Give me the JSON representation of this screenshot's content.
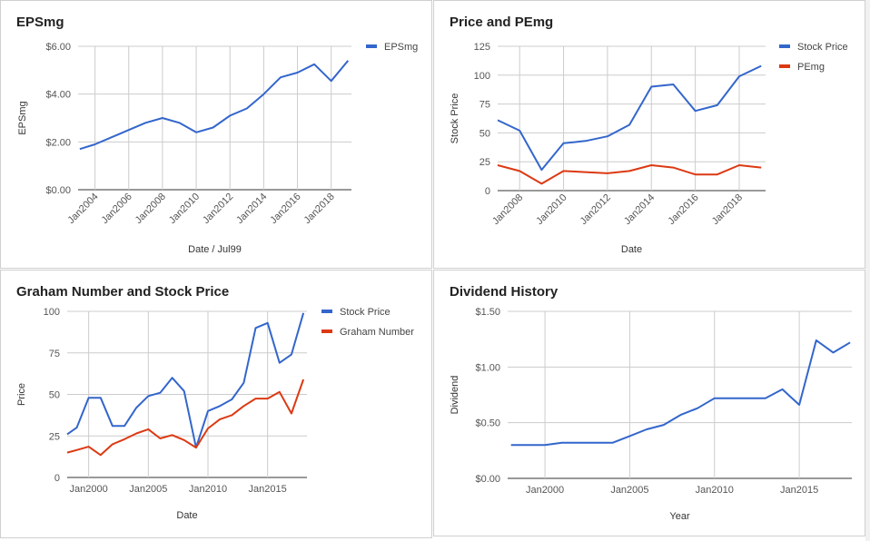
{
  "colors": {
    "blue": "#3366cc",
    "red": "#dc3912",
    "grid": "#cccccc",
    "axis": "#333333"
  },
  "chart_data": [
    {
      "id": "eps",
      "type": "line",
      "title": "EPSmg",
      "xlabel": "Date / Jul99",
      "ylabel": "EPSmg",
      "xlim": [
        2003.0,
        2019.2
      ],
      "ylim": [
        0,
        6
      ],
      "yticks": [
        0,
        2,
        4,
        6
      ],
      "ytick_labels": [
        "$0.00",
        "$2.00",
        "$4.00",
        "$6.00"
      ],
      "xticks": [
        2004,
        2006,
        2008,
        2010,
        2012,
        2014,
        2016,
        2018
      ],
      "xtick_labels": [
        "Jan2004",
        "Jan2006",
        "Jan2008",
        "Jan2010",
        "Jan2012",
        "Jan2014",
        "Jan2016",
        "Jan2018"
      ],
      "x_label_rotation": -45,
      "legend": "right",
      "series": [
        {
          "name": "EPSmg",
          "color": "#3366cc",
          "x": [
            2003.1,
            2004.0,
            2005.0,
            2006.0,
            2007.0,
            2008.0,
            2009.0,
            2010.0,
            2011.0,
            2012.0,
            2013.0,
            2014.0,
            2015.0,
            2016.0,
            2017.0,
            2018.0,
            2019.0
          ],
          "y": [
            1.7,
            1.9,
            2.2,
            2.5,
            2.8,
            3.0,
            2.8,
            2.4,
            2.6,
            3.1,
            3.4,
            4.0,
            4.7,
            4.9,
            5.25,
            4.55,
            5.4
          ]
        }
      ]
    },
    {
      "id": "price-pe",
      "type": "line",
      "title": "Price and PEmg",
      "xlabel": "Date",
      "ylabel": "Stock Price",
      "xlim": [
        2007.0,
        2019.2
      ],
      "ylim": [
        0,
        125
      ],
      "yticks": [
        0,
        25,
        50,
        75,
        100,
        125
      ],
      "ytick_labels": [
        "0",
        "25",
        "50",
        "75",
        "100",
        "125"
      ],
      "xticks": [
        2008,
        2010,
        2012,
        2014,
        2016,
        2018
      ],
      "xtick_labels": [
        "Jan2008",
        "Jan2010",
        "Jan2012",
        "Jan2014",
        "Jan2016",
        "Jan2018"
      ],
      "x_label_rotation": -45,
      "legend": "right",
      "series": [
        {
          "name": "Stock Price",
          "color": "#3366cc",
          "x": [
            2007.0,
            2008.0,
            2009.0,
            2010.0,
            2011.0,
            2012.0,
            2013.0,
            2014.0,
            2015.0,
            2016.0,
            2017.0,
            2018.0,
            2019.0
          ],
          "y": [
            61,
            52,
            18,
            41,
            43,
            47,
            57,
            90,
            92,
            69,
            74,
            99,
            108
          ]
        },
        {
          "name": "PEmg",
          "color": "#dc3912",
          "x": [
            2007.0,
            2008.0,
            2009.0,
            2010.0,
            2011.0,
            2012.0,
            2013.0,
            2014.0,
            2015.0,
            2016.0,
            2017.0,
            2018.0,
            2019.0
          ],
          "y": [
            22,
            17,
            6,
            17,
            16,
            15,
            17,
            22,
            20,
            14,
            14,
            22,
            20
          ]
        }
      ]
    },
    {
      "id": "graham",
      "type": "line",
      "title": "Graham Number and Stock Price",
      "xlabel": "Date",
      "ylabel": "Price",
      "xlim": [
        1998.2,
        2018.3
      ],
      "ylim": [
        0,
        100
      ],
      "yticks": [
        0,
        25,
        50,
        75,
        100
      ],
      "ytick_labels": [
        "0",
        "25",
        "50",
        "75",
        "100"
      ],
      "xticks": [
        2000,
        2005,
        2010,
        2015
      ],
      "xtick_labels": [
        "Jan2000",
        "Jan2005",
        "Jan2010",
        "Jan2015"
      ],
      "x_label_rotation": 0,
      "legend": "right",
      "series": [
        {
          "name": "Stock Price",
          "color": "#3366cc",
          "x": [
            1998.2,
            1999.0,
            2000.0,
            2001.0,
            2002.0,
            2003.0,
            2004.0,
            2005.0,
            2006.0,
            2007.0,
            2008.0,
            2009.0,
            2010.0,
            2011.0,
            2012.0,
            2013.0,
            2014.0,
            2015.0,
            2016.0,
            2017.0,
            2018.0
          ],
          "y": [
            26,
            30,
            48,
            48,
            31,
            31,
            42,
            49,
            51,
            60,
            52,
            18,
            40,
            43,
            47,
            57,
            90,
            93,
            69,
            74,
            99
          ]
        },
        {
          "name": "Graham Number",
          "color": "#dc3912",
          "x": [
            1998.2,
            1999.0,
            2000.0,
            2001.0,
            2002.0,
            2003.0,
            2004.0,
            2005.0,
            2006.0,
            2007.0,
            2008.0,
            2009.0,
            2010.0,
            2011.0,
            2012.0,
            2013.0,
            2014.0,
            2015.0,
            2016.0,
            2017.0,
            2018.0
          ],
          "y": [
            15,
            16.5,
            18.5,
            13.5,
            20,
            23,
            26.5,
            29,
            23.5,
            25.5,
            22.5,
            18,
            29.5,
            35,
            37.5,
            43,
            47.5,
            47.5,
            51.5,
            38.5,
            59
          ]
        }
      ]
    },
    {
      "id": "dividend",
      "type": "line",
      "title": "Dividend History",
      "xlabel": "Year",
      "ylabel": "Dividend",
      "xlim": [
        1997.8,
        2018.1
      ],
      "ylim": [
        0,
        1.5
      ],
      "yticks": [
        0,
        0.5,
        1.0,
        1.5
      ],
      "ytick_labels": [
        "$0.00",
        "$0.50",
        "$1.00",
        "$1.50"
      ],
      "xticks": [
        2000,
        2005,
        2010,
        2015
      ],
      "xtick_labels": [
        "Jan2000",
        "Jan2005",
        "Jan2010",
        "Jan2015"
      ],
      "x_label_rotation": 0,
      "legend": "none",
      "series": [
        {
          "name": "",
          "color": "#3366cc",
          "x": [
            1998.0,
            1999.0,
            2000.0,
            2001.0,
            2002.0,
            2003.0,
            2004.0,
            2005.0,
            2006.0,
            2007.0,
            2008.0,
            2009.0,
            2010.0,
            2011.0,
            2012.0,
            2013.0,
            2014.0,
            2015.0,
            2016.0,
            2017.0,
            2018.0
          ],
          "y": [
            0.3,
            0.3,
            0.3,
            0.32,
            0.32,
            0.32,
            0.32,
            0.38,
            0.44,
            0.48,
            0.57,
            0.63,
            0.72,
            0.72,
            0.72,
            0.72,
            0.8,
            0.66,
            1.24,
            1.13,
            1.22
          ]
        }
      ]
    }
  ]
}
